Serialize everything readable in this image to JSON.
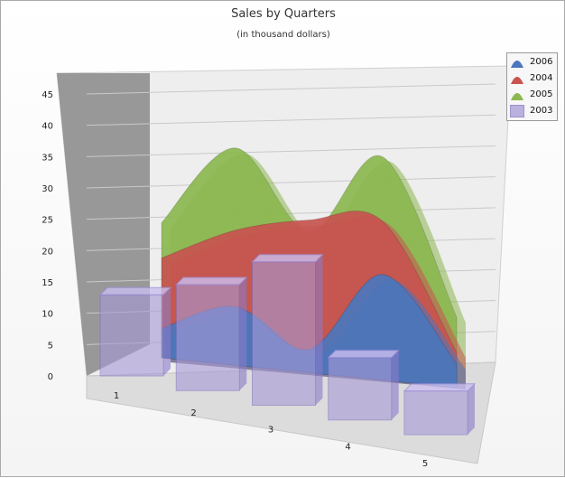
{
  "chart_data": {
    "type": "area",
    "title": "Sales by Quarters",
    "subtitle": "(in thousand dollars)",
    "categories": [
      "1",
      "2",
      "3",
      "4",
      "5"
    ],
    "y_ticks": [
      "0",
      "5",
      "10",
      "15",
      "20",
      "25",
      "30",
      "35",
      "40",
      "45"
    ],
    "ylim": [
      0,
      47
    ],
    "grid": true,
    "legend_position": "top-right",
    "series": [
      {
        "name": "2006",
        "type": "area",
        "color": "#4b77bd",
        "values": [
          5,
          10,
          4,
          18,
          4
        ]
      },
      {
        "name": "2004",
        "type": "area",
        "color": "#c85450",
        "values": [
          17,
          23,
          26,
          27,
          6
        ]
      },
      {
        "name": "2005",
        "type": "area",
        "color": "#8cb850",
        "values": [
          23,
          37,
          24,
          38,
          12
        ]
      },
      {
        "name": "2003",
        "type": "bar",
        "color": "#a89ad6",
        "values": [
          13,
          17,
          23,
          10,
          7
        ]
      }
    ]
  }
}
